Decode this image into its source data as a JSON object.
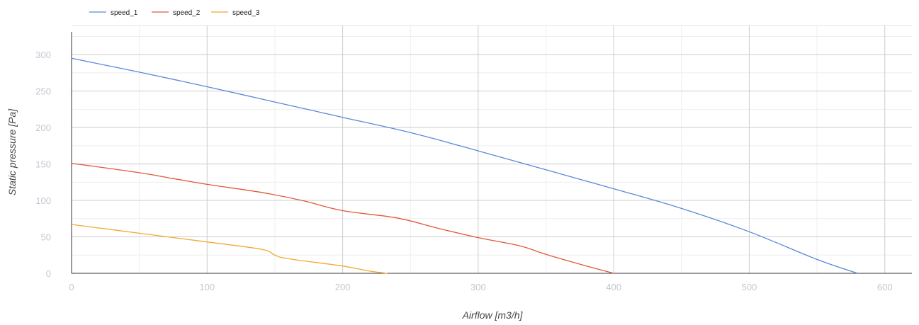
{
  "chart_data": {
    "type": "line",
    "title": "",
    "xlabel": "Airflow [m3/h]",
    "ylabel": "Static pressure [Pa]",
    "xlim": [
      0,
      620
    ],
    "ylim": [
      0,
      340
    ],
    "xticks": [
      0,
      100,
      200,
      300,
      400,
      500,
      600
    ],
    "yticks": [
      0,
      50,
      100,
      150,
      200,
      250,
      300
    ],
    "x_minor_step": 50,
    "y_minor_step": 25,
    "grid": true,
    "legend_position": "top-left",
    "series": [
      {
        "name": "speed_1",
        "color": "#5b87da",
        "points": [
          [
            0,
            295
          ],
          [
            50,
            276
          ],
          [
            100,
            256
          ],
          [
            150,
            235
          ],
          [
            200,
            214
          ],
          [
            250,
            193
          ],
          [
            300,
            168
          ],
          [
            350,
            142
          ],
          [
            400,
            116
          ],
          [
            450,
            89
          ],
          [
            500,
            57
          ],
          [
            550,
            19
          ],
          [
            580,
            0
          ]
        ]
      },
      {
        "name": "speed_2",
        "color": "#e0573a",
        "points": [
          [
            0,
            151
          ],
          [
            50,
            138
          ],
          [
            75,
            130
          ],
          [
            100,
            122
          ],
          [
            140,
            111
          ],
          [
            170,
            100
          ],
          [
            200,
            86
          ],
          [
            240,
            76
          ],
          [
            270,
            62
          ],
          [
            300,
            49
          ],
          [
            330,
            38
          ],
          [
            350,
            26
          ],
          [
            380,
            10
          ],
          [
            400,
            0
          ]
        ]
      },
      {
        "name": "speed_3",
        "color": "#f4a732",
        "points": [
          [
            0,
            67
          ],
          [
            50,
            55
          ],
          [
            100,
            43
          ],
          [
            140,
            33
          ],
          [
            150,
            25
          ],
          [
            160,
            20
          ],
          [
            200,
            10
          ],
          [
            220,
            3
          ],
          [
            233,
            0
          ]
        ]
      }
    ]
  }
}
